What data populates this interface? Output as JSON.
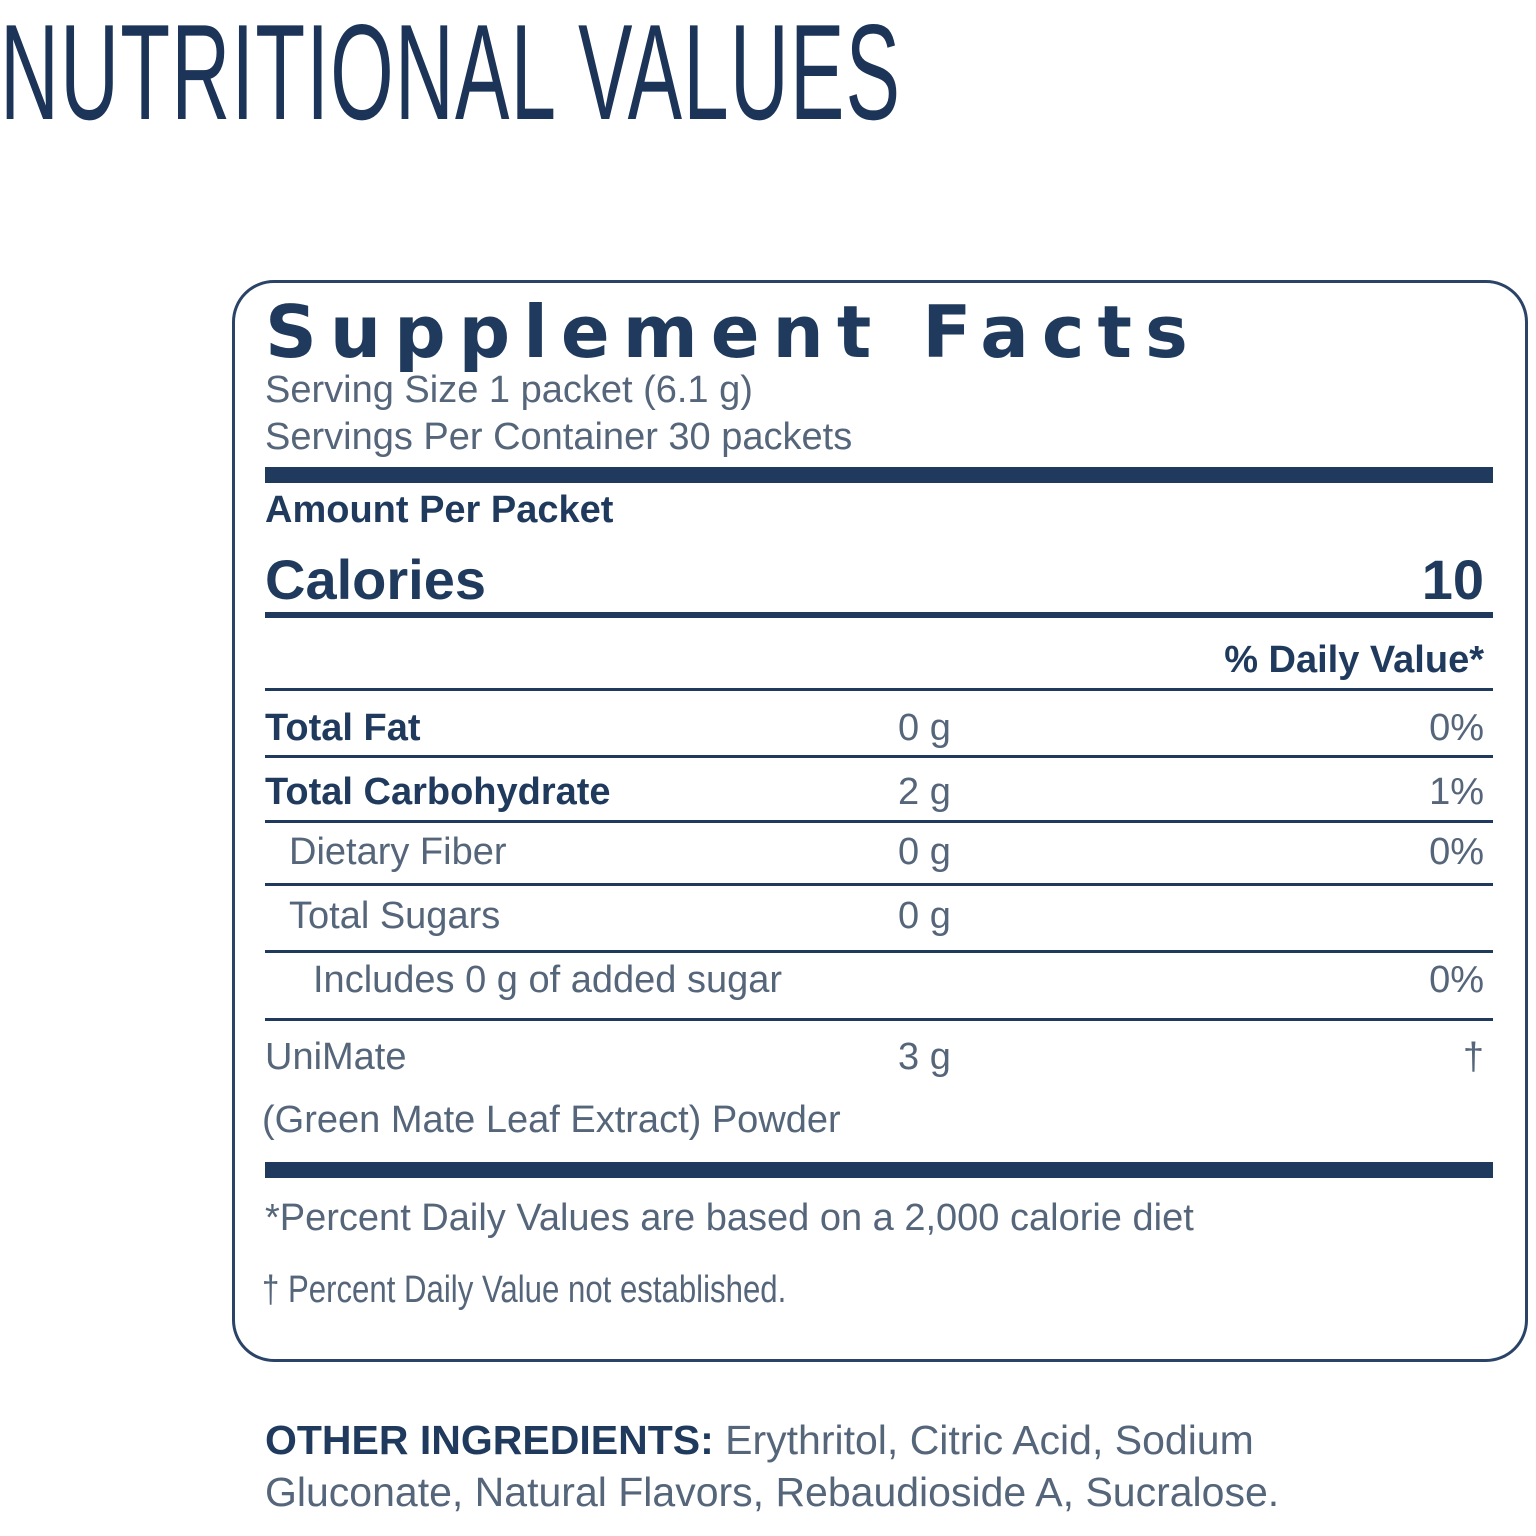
{
  "header": {
    "title": "NUTRITIONAL VALUES"
  },
  "label": {
    "title": "Supplement Facts",
    "serving_size": "Serving Size 1 packet (6.1 g)",
    "servings_per_container": "Servings Per Container 30 packets",
    "amount_per": "Amount Per Packet",
    "calories_label": "Calories",
    "calories_value": "10",
    "daily_value_header": "% Daily Value*",
    "rows": [
      {
        "name": "Total Fat",
        "amount": "0 g",
        "dv": "0%",
        "bold": true,
        "indent": 0
      },
      {
        "name": "Total Carbohydrate",
        "amount": "2 g",
        "dv": "1%",
        "bold": true,
        "indent": 0
      },
      {
        "name": "Dietary Fiber",
        "amount": "0 g",
        "dv": "0%",
        "bold": false,
        "indent": 1
      },
      {
        "name": "Total Sugars",
        "amount": "0 g",
        "bold": false,
        "indent": 1
      },
      {
        "name": "Includes 0 g of added sugar",
        "dv": "0%",
        "bold": false,
        "indent": 2
      },
      {
        "name": "UniMate",
        "amount": "3 g",
        "dv": "†",
        "bold": false,
        "indent": 0,
        "subname": "(Green Mate Leaf Extract) Powder"
      }
    ],
    "footnotes": [
      "*Percent Daily Values are based on a 2,000 calorie diet",
      "† Percent Daily Value not established."
    ]
  },
  "other_ingredients": {
    "label": "OTHER INGREDIENTS:",
    "text": "Erythritol, Citric Acid, Sodium Gluconate, Natural Flavors, Rebaudioside A, Sucralose."
  }
}
